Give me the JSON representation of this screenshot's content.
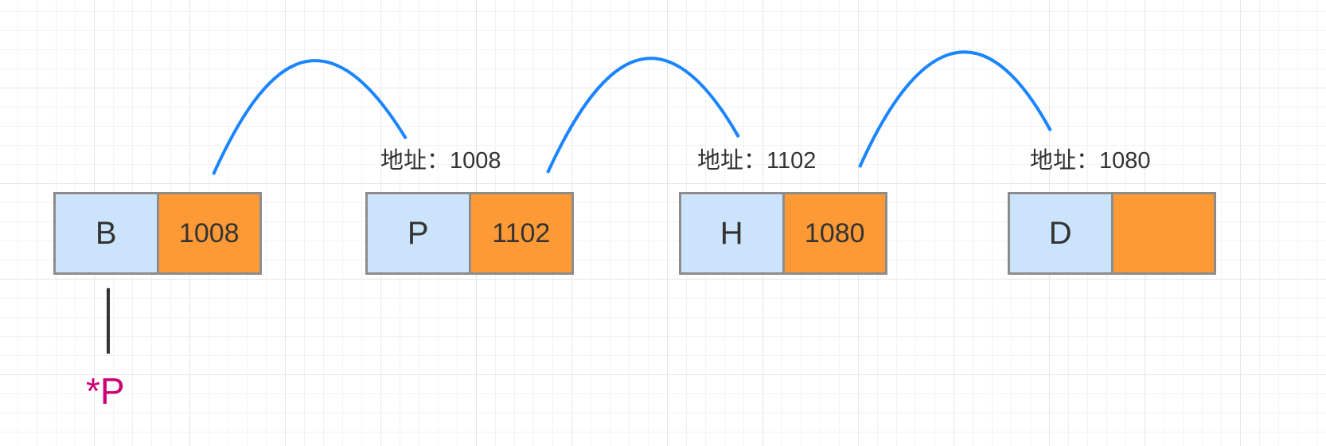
{
  "colors": {
    "data_cell": "#cce4fb",
    "next_cell": "#fd9a35",
    "link_arrow": "#1a85ff",
    "pointer_arrow": "#333333",
    "pointer_text": "#cc0073"
  },
  "nodes": [
    {
      "data": "B",
      "next": "1008",
      "address_label": ""
    },
    {
      "data": "P",
      "next": "1102",
      "address_label": "地址：1008"
    },
    {
      "data": "H",
      "next": "1080",
      "address_label": "地址：1102"
    },
    {
      "data": "D",
      "next": "",
      "address_label": "地址：1080"
    }
  ],
  "pointer": {
    "label": "*P"
  }
}
